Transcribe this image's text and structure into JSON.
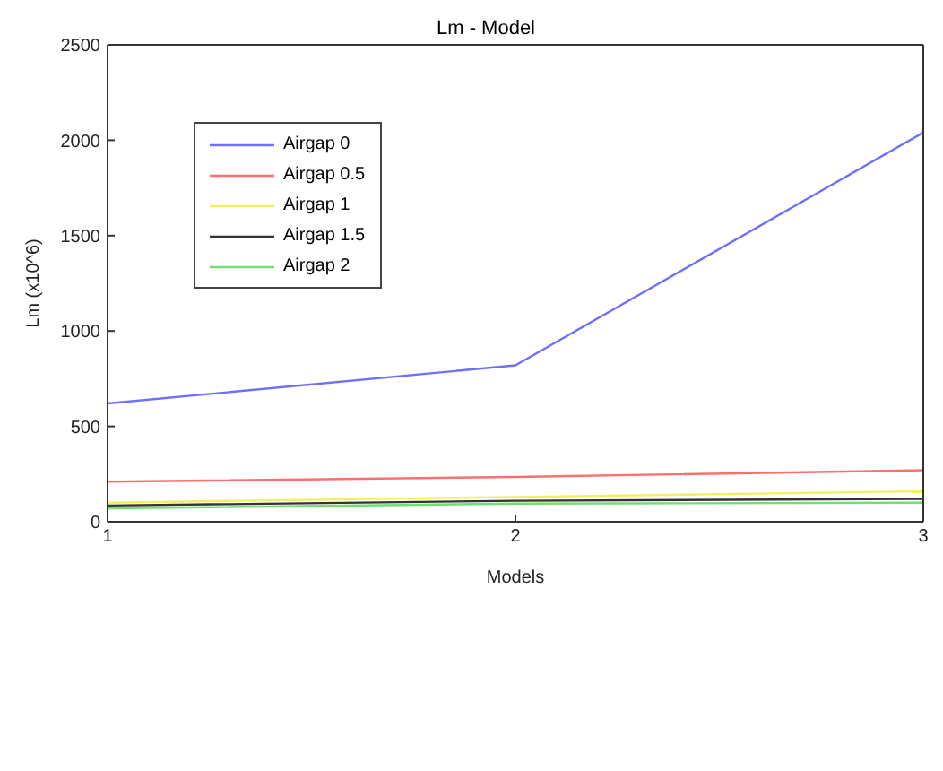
{
  "chart_data": {
    "type": "line",
    "title": "Lm - Model",
    "xlabel": "Models",
    "ylabel": "Lm (x10^6)",
    "x": [
      1,
      2,
      3
    ],
    "series": [
      {
        "name": "Airgap 0",
        "color": "#6f6fff",
        "values": [
          620,
          820,
          2040
        ]
      },
      {
        "name": "Airgap 0.5",
        "color": "#ff6f6f",
        "values": [
          210,
          235,
          270
        ]
      },
      {
        "name": "Airgap 1",
        "color": "#f0f060",
        "values": [
          100,
          130,
          160
        ]
      },
      {
        "name": "Airgap 1.5",
        "color": "#333333",
        "values": [
          85,
          110,
          120
        ]
      },
      {
        "name": "Airgap 2",
        "color": "#6fdf6f",
        "values": [
          70,
          95,
          100
        ]
      }
    ],
    "xlim": [
      1,
      3
    ],
    "xticks": [
      1,
      2,
      3
    ],
    "ylim": [
      0,
      2500
    ],
    "yticks": [
      0,
      500,
      1000,
      1500,
      2000,
      2500
    ],
    "legend": "top left",
    "marker": "none",
    "line_style": "solid"
  }
}
